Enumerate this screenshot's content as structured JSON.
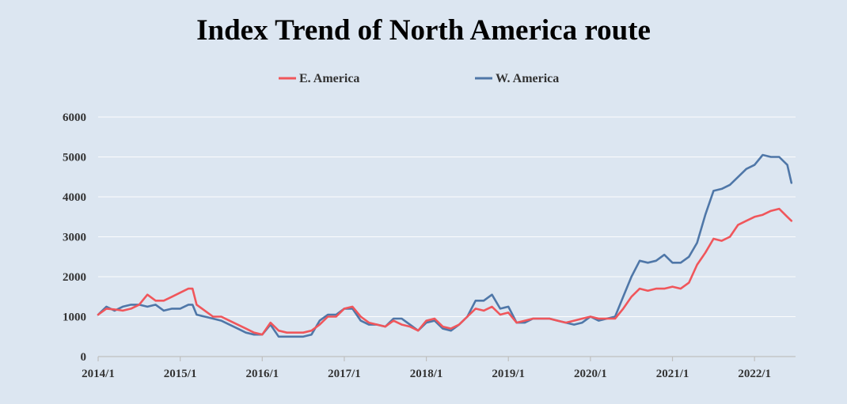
{
  "chart_data": {
    "type": "line",
    "title": "Index Trend of North America route",
    "xlabel": "",
    "ylabel": "",
    "x_tick_labels": [
      "2014/1",
      "2015/1",
      "2016/1",
      "2017/1",
      "2018/1",
      "2019/1",
      "2020/1",
      "2021/1",
      "2022/1"
    ],
    "xlim": [
      2014.0,
      2022.5
    ],
    "ylim": [
      0,
      6000
    ],
    "y_ticks": [
      0,
      1000,
      2000,
      3000,
      4000,
      5000,
      6000
    ],
    "grid": "horizontal",
    "legend_position": "top-center",
    "x": [
      2014.0,
      2014.1,
      2014.2,
      2014.3,
      2014.4,
      2014.5,
      2014.6,
      2014.7,
      2014.8,
      2014.9,
      2015.0,
      2015.1,
      2015.15,
      2015.2,
      2015.3,
      2015.4,
      2015.5,
      2015.6,
      2015.7,
      2015.8,
      2015.9,
      2016.0,
      2016.1,
      2016.2,
      2016.3,
      2016.4,
      2016.5,
      2016.6,
      2016.7,
      2016.8,
      2016.9,
      2017.0,
      2017.1,
      2017.2,
      2017.3,
      2017.4,
      2017.5,
      2017.6,
      2017.7,
      2017.8,
      2017.9,
      2018.0,
      2018.1,
      2018.2,
      2018.3,
      2018.4,
      2018.5,
      2018.6,
      2018.7,
      2018.8,
      2018.9,
      2019.0,
      2019.1,
      2019.2,
      2019.3,
      2019.4,
      2019.5,
      2019.6,
      2019.7,
      2019.8,
      2019.9,
      2020.0,
      2020.1,
      2020.2,
      2020.3,
      2020.4,
      2020.5,
      2020.6,
      2020.7,
      2020.8,
      2020.9,
      2021.0,
      2021.1,
      2021.2,
      2021.3,
      2021.4,
      2021.5,
      2021.6,
      2021.7,
      2021.8,
      2021.9,
      2022.0,
      2022.1,
      2022.2,
      2022.3,
      2022.4,
      2022.45
    ],
    "series": [
      {
        "name": "E. America",
        "color": "#f0565b",
        "values": [
          1050,
          1200,
          1180,
          1150,
          1200,
          1300,
          1550,
          1400,
          1400,
          1500,
          1600,
          1700,
          1700,
          1300,
          1150,
          1000,
          1000,
          900,
          800,
          700,
          600,
          550,
          850,
          650,
          600,
          600,
          600,
          650,
          800,
          1000,
          1000,
          1200,
          1250,
          1000,
          850,
          800,
          750,
          900,
          800,
          750,
          650,
          900,
          950,
          750,
          700,
          800,
          1000,
          1200,
          1150,
          1250,
          1050,
          1100,
          850,
          900,
          950,
          950,
          950,
          900,
          850,
          900,
          950,
          1000,
          950,
          950,
          950,
          1200,
          1500,
          1700,
          1650,
          1700,
          1700,
          1750,
          1700,
          1850,
          2300,
          2600,
          2950,
          2900,
          3000,
          3300,
          3400,
          3500,
          3550,
          3650,
          3700,
          3500,
          3400
        ]
      },
      {
        "name": "W. America",
        "color": "#4f77a8",
        "values": [
          1050,
          1250,
          1150,
          1250,
          1300,
          1300,
          1250,
          1300,
          1150,
          1200,
          1200,
          1300,
          1300,
          1050,
          1000,
          950,
          900,
          800,
          700,
          600,
          550,
          550,
          800,
          500,
          500,
          500,
          500,
          550,
          900,
          1050,
          1050,
          1200,
          1200,
          900,
          800,
          800,
          750,
          950,
          950,
          800,
          650,
          850,
          900,
          700,
          650,
          800,
          1000,
          1400,
          1400,
          1550,
          1200,
          1250,
          850,
          850,
          950,
          950,
          950,
          900,
          850,
          800,
          850,
          1000,
          900,
          950,
          1000,
          1500,
          2000,
          2400,
          2350,
          2400,
          2550,
          2350,
          2350,
          2500,
          2850,
          3550,
          4150,
          4200,
          4300,
          4500,
          4700,
          4800,
          5050,
          5000,
          5000,
          4800,
          4350
        ]
      }
    ]
  }
}
